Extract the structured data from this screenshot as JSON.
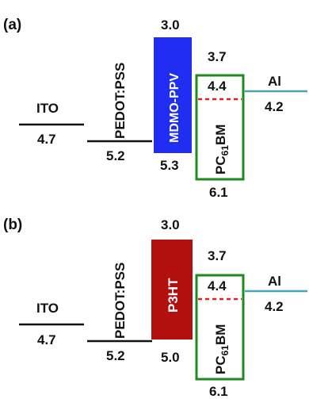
{
  "colors": {
    "line": "#111111",
    "ppv": "#1f2ef0",
    "p3ht": "#b40f0f",
    "pcbm_border": "#1f8a1f",
    "dashed": "#e81b1b",
    "al_line": "#4aa3b8",
    "inner_text": "#ffffff"
  },
  "panels": [
    {
      "panel_label": "(a)",
      "ito": {
        "name": "ITO",
        "value": "4.7"
      },
      "pedot": {
        "name": "PEDOT:PSS",
        "value": "5.2"
      },
      "donor": {
        "name": "MDMO-PPV",
        "lumo": "3.0",
        "homo": "5.3",
        "color_key": "ppv"
      },
      "acceptor": {
        "name_main": "PC",
        "name_sub": "61",
        "name_tail": "BM",
        "lumo": "3.7",
        "lumo_inner": "4.4",
        "homo": "6.1"
      },
      "al": {
        "name": "Al",
        "value": "4.2"
      }
    },
    {
      "panel_label": "(b)",
      "ito": {
        "name": "ITO",
        "value": "4.7"
      },
      "pedot": {
        "name": "PEDOT:PSS",
        "value": "5.2"
      },
      "donor": {
        "name": "P3HT",
        "lumo": "3.0",
        "homo": "5.0",
        "color_key": "p3ht"
      },
      "acceptor": {
        "name_main": "PC",
        "name_sub": "61",
        "name_tail": "BM",
        "lumo": "3.7",
        "lumo_inner": "4.4",
        "homo": "6.1"
      },
      "al": {
        "name": "Al",
        "value": "4.2"
      }
    }
  ]
}
